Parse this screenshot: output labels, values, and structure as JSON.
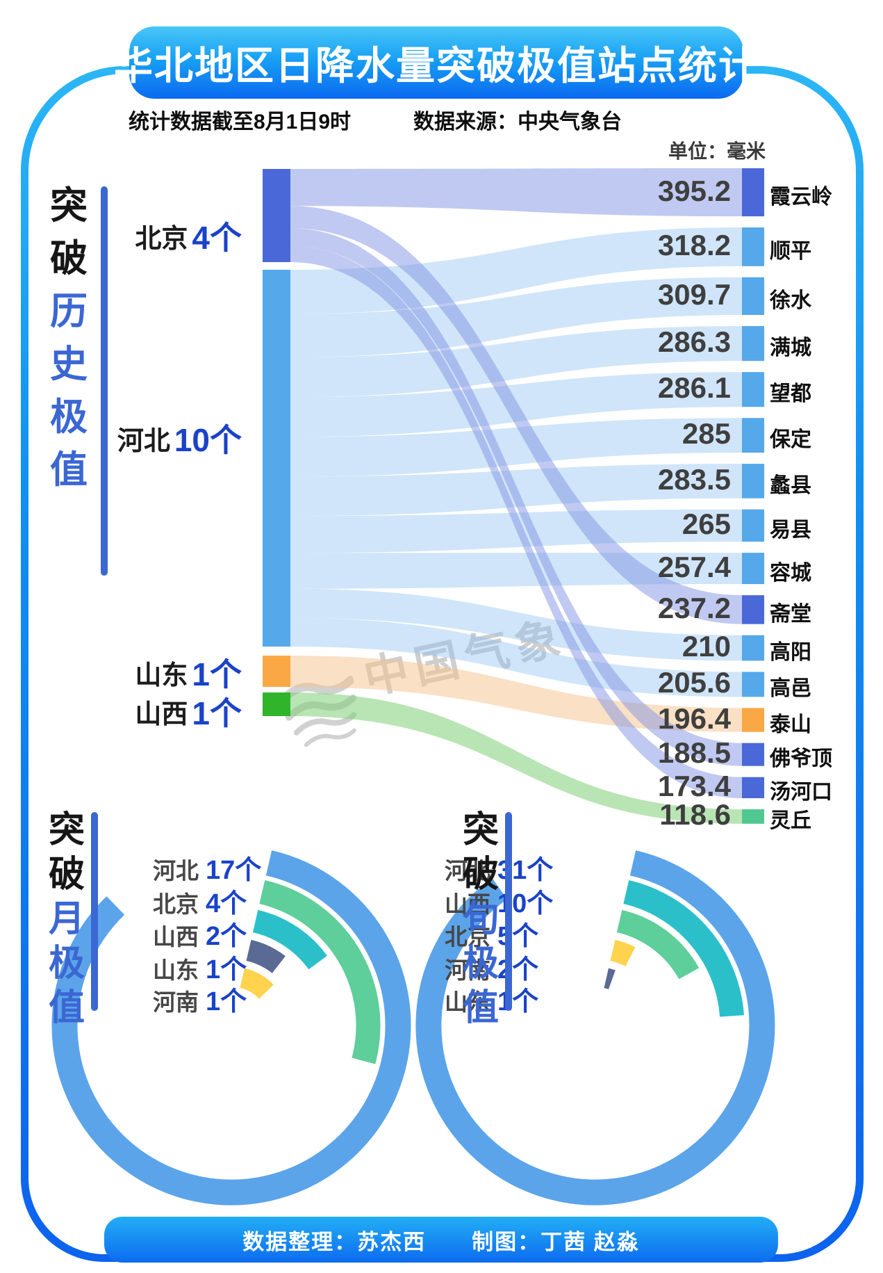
{
  "page": {
    "title": "华北地区日降水量突破极值站点统计",
    "subtitle": "统计数据截至8月1日9时　　　数据来源：中央气象台",
    "unit_label": "单位：毫米",
    "watermark_text": "中国气象",
    "footer": "数据整理：苏杰西　　制图：丁茜 赵淼"
  },
  "captions": {
    "history": {
      "prefix": "突破",
      "highlight": "历史极值"
    },
    "monthly": {
      "prefix": "突破",
      "highlight": "月极值"
    },
    "tenday": {
      "prefix": "突破",
      "highlight": "旬极值"
    }
  },
  "colors": {
    "accent_blue": "#0c6af0",
    "count_blue": "#1a43c8",
    "caption_blue": "#3b67d3",
    "provinces": {
      "北京": "#4a68d8",
      "河北": "#55a8ea",
      "山东": "#f9a845",
      "山西": "#2fb42c"
    },
    "ribbons": {
      "北京": "#8194e4",
      "河北": "#90c2f0",
      "山东": "#f6c289",
      "山西": "#7fd077"
    },
    "ribbon_opacity": {
      "北京": 0.5,
      "河北": 0.42,
      "山东": 0.5,
      "山西": 0.55
    },
    "station_overrides": {
      "灵丘": "#50c890"
    },
    "radial": {
      "河北": "#5ba4ea",
      "北京": "#5ece9b",
      "山西": "#2bc0c9",
      "山东": "#5a6a94",
      "河南": "#ffd34e"
    }
  },
  "chart_data": [
    {
      "type": "sankey",
      "title": "突破历史极值",
      "unit": "毫米",
      "sources": [
        {
          "province": "北京",
          "count": 4,
          "count_label": "4个"
        },
        {
          "province": "河北",
          "count": 10,
          "count_label": "10个"
        },
        {
          "province": "山东",
          "count": 1,
          "count_label": "1个"
        },
        {
          "province": "山西",
          "count": 1,
          "count_label": "1个"
        }
      ],
      "stations": [
        {
          "name": "霞云岭",
          "value": 395.2,
          "display": "395.2",
          "province": "北京"
        },
        {
          "name": "顺平",
          "value": 318.2,
          "display": "318.2",
          "province": "河北"
        },
        {
          "name": "徐水",
          "value": 309.7,
          "display": "309.7",
          "province": "河北"
        },
        {
          "name": "满城",
          "value": 286.3,
          "display": "286.3",
          "province": "河北"
        },
        {
          "name": "望都",
          "value": 286.1,
          "display": "286.1",
          "province": "河北"
        },
        {
          "name": "保定",
          "value": 285,
          "display": "285",
          "province": "河北"
        },
        {
          "name": "蠡县",
          "value": 283.5,
          "display": "283.5",
          "province": "河北"
        },
        {
          "name": "易县",
          "value": 265,
          "display": "265",
          "province": "河北"
        },
        {
          "name": "容城",
          "value": 257.4,
          "display": "257.4",
          "province": "河北"
        },
        {
          "name": "斋堂",
          "value": 237.2,
          "display": "237.2",
          "province": "北京"
        },
        {
          "name": "高阳",
          "value": 210,
          "display": "210",
          "province": "河北"
        },
        {
          "name": "高邑",
          "value": 205.6,
          "display": "205.6",
          "province": "河北"
        },
        {
          "name": "泰山",
          "value": 196.4,
          "display": "196.4",
          "province": "山东"
        },
        {
          "name": "佛爷顶",
          "value": 188.5,
          "display": "188.5",
          "province": "北京"
        },
        {
          "name": "汤河口",
          "value": 173.4,
          "display": "173.4",
          "province": "北京"
        },
        {
          "name": "灵丘",
          "value": 118.6,
          "display": "118.6",
          "province": "山西"
        }
      ]
    },
    {
      "type": "radial_bar",
      "title": "突破月极值",
      "legend_position": "top-left",
      "entries": [
        {
          "province": "河北",
          "count": 17,
          "label": "17个",
          "sweep_deg": 303
        },
        {
          "province": "北京",
          "count": 4,
          "label": "4个",
          "sweep_deg": 92
        },
        {
          "province": "山西",
          "count": 2,
          "label": "2个",
          "sweep_deg": 41
        },
        {
          "province": "山东",
          "count": 1,
          "label": "1个",
          "sweep_deg": 25
        },
        {
          "province": "河南",
          "count": 1,
          "label": "1个",
          "sweep_deg": 33
        }
      ]
    },
    {
      "type": "radial_bar",
      "title": "突破旬极值",
      "legend_position": "top-left",
      "entries": [
        {
          "province": "河北",
          "count": 31,
          "label": "31个",
          "sweep_deg": 312
        },
        {
          "province": "山西",
          "count": 10,
          "label": "10个",
          "sweep_deg": 73
        },
        {
          "province": "北京",
          "count": 5,
          "label": "5个",
          "sweep_deg": 48
        },
        {
          "province": "河南",
          "count": 2,
          "label": "2个",
          "sweep_deg": 14
        },
        {
          "province": "山东",
          "count": 1,
          "label": "1个",
          "sweep_deg": 7
        }
      ]
    }
  ]
}
